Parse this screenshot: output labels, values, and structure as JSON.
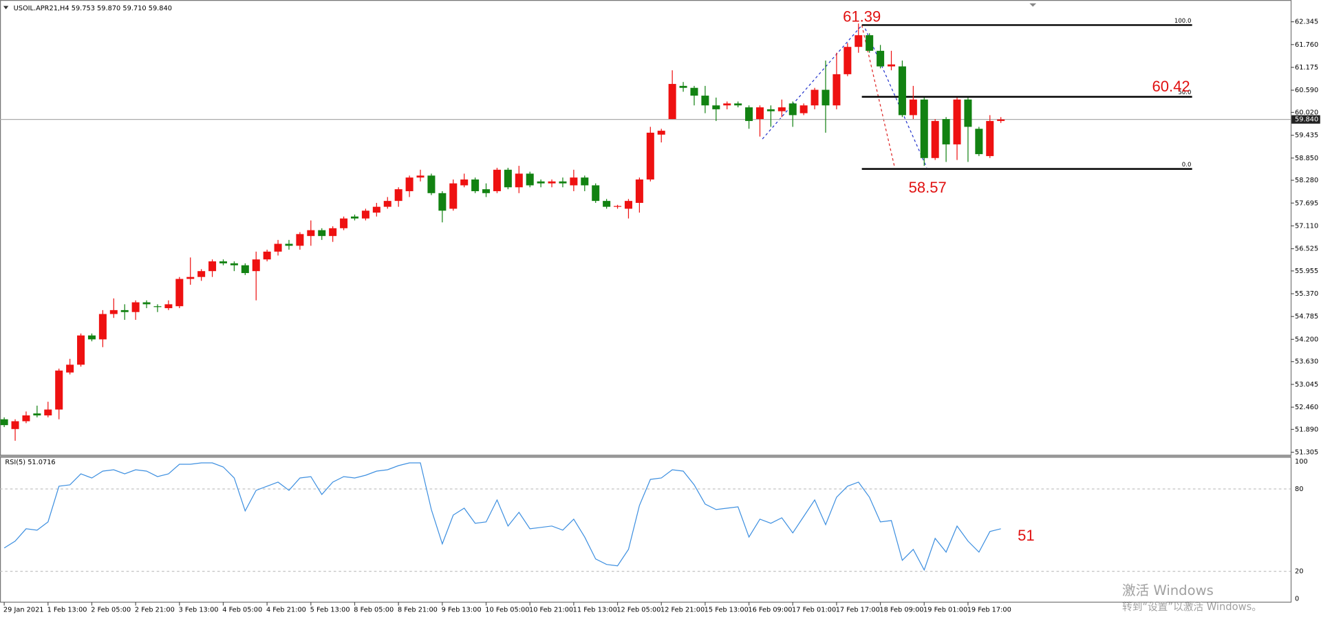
{
  "chart_data": [
    {
      "type": "candlestick",
      "title": "USOIL.APR21,H4  59.753 59.870 59.710 59.840",
      "categories": [
        "29 Jan 2021",
        null,
        null,
        null,
        "1 Feb 13:00",
        null,
        null,
        null,
        "2 Feb 05:00",
        null,
        null,
        null,
        "2 Feb 21:00",
        null,
        null,
        null,
        "3 Feb 13:00",
        null,
        null,
        null,
        "4 Feb 05:00",
        null,
        null,
        null,
        "4 Feb 21:00",
        null,
        null,
        null,
        "5 Feb 13:00",
        null,
        null,
        null,
        "8 Feb 05:00",
        null,
        null,
        null,
        "8 Feb 21:00",
        null,
        null,
        null,
        "9 Feb 13:00",
        null,
        null,
        null,
        "10 Feb 05:00",
        null,
        null,
        null,
        "10 Feb 21:00",
        null,
        null,
        null,
        "11 Feb 13:00",
        null,
        null,
        null,
        "12 Feb 05:00",
        null,
        null,
        null,
        "12 Feb 21:00",
        null,
        null,
        null,
        "15 Feb 13:00",
        null,
        null,
        null,
        "16 Feb 09:00",
        null,
        null,
        null,
        "17 Feb 01:00",
        null,
        null,
        null,
        "17 Feb 17:00",
        null,
        null,
        null,
        "18 Feb 09:00",
        null,
        null,
        null,
        "19 Feb 01:00",
        null,
        null,
        null,
        "19 Feb 17:00",
        null,
        null,
        null
      ],
      "open": [
        52.15,
        51.9,
        52.1,
        52.3,
        52.25,
        52.4,
        53.35,
        53.55,
        54.3,
        54.2,
        54.85,
        54.95,
        54.9,
        55.15,
        55.05,
        55.0,
        55.05,
        55.75,
        55.8,
        55.95,
        56.2,
        56.15,
        56.1,
        55.95,
        56.25,
        56.45,
        56.65,
        56.6,
        56.85,
        57.0,
        56.85,
        57.05,
        57.35,
        57.3,
        57.45,
        57.6,
        57.75,
        58.0,
        58.35,
        58.4,
        57.95,
        57.55,
        58.15,
        58.3,
        58.05,
        58.0,
        58.55,
        58.1,
        58.45,
        58.25,
        58.2,
        58.25,
        58.15,
        58.35,
        58.15,
        57.75,
        57.6,
        57.55,
        57.7,
        58.3,
        59.45,
        59.85,
        60.7,
        60.65,
        60.45,
        60.2,
        60.2,
        60.25,
        60.15,
        59.85,
        60.1,
        60.05,
        60.25,
        60.0,
        60.2,
        60.6,
        60.2,
        61.0,
        61.7,
        62.0,
        61.6,
        61.2,
        61.2,
        59.95,
        60.35,
        58.85,
        59.85,
        59.2,
        60.35,
        59.6,
        58.9,
        59.8
      ],
      "high": [
        52.2,
        52.15,
        52.35,
        52.5,
        52.6,
        53.45,
        53.7,
        54.35,
        54.35,
        54.95,
        55.25,
        55.1,
        55.2,
        55.2,
        55.1,
        55.2,
        55.8,
        56.3,
        56.0,
        56.25,
        56.25,
        56.2,
        56.15,
        56.45,
        56.5,
        56.75,
        56.75,
        56.95,
        57.25,
        57.05,
        57.1,
        57.35,
        57.4,
        57.55,
        57.7,
        57.85,
        58.1,
        58.4,
        58.55,
        58.45,
        58.0,
        58.3,
        58.45,
        58.35,
        58.2,
        58.6,
        58.6,
        58.65,
        58.5,
        58.3,
        58.3,
        58.35,
        58.55,
        58.4,
        58.2,
        57.8,
        57.65,
        57.8,
        58.35,
        59.65,
        59.6,
        61.1,
        60.8,
        60.7,
        60.7,
        60.4,
        60.3,
        60.3,
        60.2,
        60.2,
        60.2,
        60.35,
        60.3,
        60.25,
        60.65,
        61.35,
        61.55,
        61.8,
        62.3,
        62.05,
        61.75,
        61.6,
        61.35,
        60.7,
        60.4,
        59.85,
        59.9,
        60.4,
        60.4,
        59.65,
        59.95,
        59.9
      ],
      "low": [
        51.95,
        51.6,
        52.05,
        52.2,
        52.2,
        52.15,
        53.3,
        53.5,
        54.15,
        54.0,
        54.75,
        54.7,
        54.7,
        55.0,
        54.9,
        54.95,
        55.0,
        55.6,
        55.7,
        55.8,
        56.1,
        55.95,
        55.85,
        55.2,
        56.2,
        56.35,
        56.5,
        56.5,
        56.6,
        56.75,
        56.7,
        57.0,
        57.25,
        57.25,
        57.35,
        57.55,
        57.6,
        57.85,
        58.25,
        57.9,
        57.2,
        57.5,
        58.1,
        57.95,
        57.85,
        57.95,
        58.05,
        57.95,
        58.1,
        58.1,
        58.1,
        58.1,
        58.0,
        58.0,
        57.7,
        57.55,
        57.55,
        57.3,
        57.45,
        58.25,
        59.25,
        59.85,
        60.55,
        60.2,
        60.0,
        59.8,
        60.1,
        60.15,
        59.6,
        59.4,
        59.65,
        59.9,
        59.65,
        59.95,
        60.1,
        59.5,
        60.1,
        60.95,
        61.55,
        61.55,
        61.15,
        61.1,
        59.9,
        59.85,
        58.65,
        58.8,
        58.75,
        58.8,
        58.75,
        58.9,
        58.85,
        59.75
      ],
      "close": [
        52.0,
        52.1,
        52.25,
        52.25,
        52.4,
        53.4,
        53.55,
        54.3,
        54.2,
        54.85,
        54.95,
        54.9,
        55.15,
        55.1,
        55.03,
        55.1,
        55.75,
        55.8,
        55.95,
        56.2,
        56.15,
        56.1,
        55.9,
        56.25,
        56.45,
        56.65,
        56.6,
        56.9,
        57.0,
        56.85,
        57.05,
        57.3,
        57.3,
        57.5,
        57.6,
        57.75,
        58.05,
        58.35,
        58.4,
        57.95,
        57.5,
        58.2,
        58.3,
        58.0,
        57.95,
        58.55,
        58.1,
        58.45,
        58.15,
        58.2,
        58.25,
        58.2,
        58.35,
        58.15,
        57.75,
        57.6,
        57.62,
        57.75,
        58.3,
        59.5,
        59.55,
        60.75,
        60.65,
        60.45,
        60.2,
        60.1,
        60.25,
        60.2,
        59.8,
        60.15,
        60.05,
        60.15,
        59.95,
        60.2,
        60.6,
        60.2,
        61.0,
        61.7,
        62.0,
        61.6,
        61.2,
        61.25,
        59.95,
        60.35,
        58.85,
        59.8,
        59.2,
        60.35,
        59.65,
        58.95,
        59.8,
        59.84
      ],
      "up_color": "#ee1111",
      "down_color": "#128212",
      "ylim": [
        51.24,
        62.73
      ],
      "yticks": [
        62.345,
        {
          "value": 61.76,
          "label": "61.760"
        },
        61.175,
        {
          "value": 60.59,
          "label": "60.590"
        },
        {
          "value": 60.02,
          "label": "60.020"
        },
        59.435,
        {
          "value": 58.85,
          "label": "58.850"
        },
        {
          "value": 58.28,
          "label": "58.280"
        },
        57.695,
        {
          "value": 57.11,
          "label": "57.110"
        },
        56.525,
        55.955,
        {
          "value": 55.37,
          "label": "55.370"
        },
        54.785,
        {
          "value": 54.2,
          "label": "54.200"
        },
        {
          "value": 53.63,
          "label": "53.630"
        },
        53.045,
        {
          "value": 52.46,
          "label": "52.460"
        },
        {
          "value": 51.89,
          "label": "51.890"
        },
        51.305
      ],
      "current_price": {
        "value": 59.84,
        "label": "59.840"
      },
      "fibonacci": [
        {
          "label": "100.0",
          "price": 62.26
        },
        {
          "label": "50.0",
          "price": 60.42
        },
        {
          "label": "0.0",
          "price": 58.57
        }
      ],
      "annotations": [
        "61.39",
        "60.42",
        "58.57"
      ]
    },
    {
      "type": "line",
      "title": "RSI(5) 51.0716",
      "values": [
        37,
        42,
        51,
        50,
        56,
        82,
        83,
        91,
        88,
        93,
        94,
        91,
        94,
        93,
        89,
        91,
        98,
        98,
        99,
        99,
        96,
        88,
        64,
        79,
        82,
        85,
        79,
        88,
        89,
        76,
        85,
        89,
        88,
        90,
        93,
        94,
        97,
        99,
        99,
        65,
        40,
        61,
        66,
        55,
        56,
        72,
        53,
        63,
        51,
        52,
        53,
        50,
        58,
        45,
        29,
        25,
        24,
        36,
        68,
        87,
        88,
        94,
        93,
        83,
        69,
        65,
        66,
        67,
        45,
        58,
        55,
        59,
        48,
        60,
        72,
        54,
        74,
        82,
        85,
        74,
        56,
        57,
        28,
        36,
        21,
        44,
        34,
        53,
        42,
        34,
        49,
        51
      ],
      "color": "#3d8fe0",
      "ylim": [
        0,
        100
      ],
      "yticks": [
        0,
        20,
        80,
        100
      ],
      "annotations": [
        "51"
      ]
    }
  ],
  "watermark": {
    "title": "激活 Windows",
    "subtitle": "转到“设置”以激活 Windows。"
  }
}
